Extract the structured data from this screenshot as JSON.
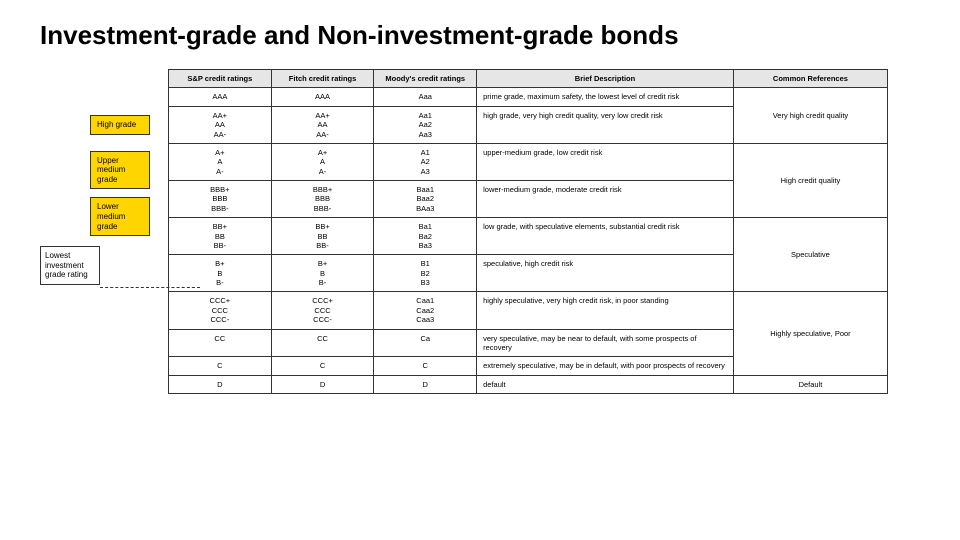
{
  "title": "Investment-grade and Non-investment-grade bonds",
  "colors": {
    "highlight": "#ffd500",
    "header_bg": "#e6e6e6",
    "border": "#333333",
    "text": "#000000",
    "bg": "#ffffff"
  },
  "headers": {
    "sp": "S&P credit ratings",
    "fitch": "Fitch credit ratings",
    "moodys": "Moody's credit ratings",
    "desc": "Brief Description",
    "ref": "Common References"
  },
  "gradeLabels": {
    "high": "High grade",
    "upperMed": "Upper medium grade",
    "lowerMed": "Lower medium grade"
  },
  "callout": "Lowest investment grade rating",
  "rows": [
    {
      "sp": "AAA",
      "fitch": "AAA",
      "moodys": "Aaa",
      "desc": "prime grade, maximum safety, the lowest level of credit risk"
    },
    {
      "sp": "AA+\nAA\nAA-",
      "fitch": "AA+\nAA\nAA-",
      "moodys": "Aa1\nAa2\nAa3",
      "desc": "high grade, very high credit quality, very low credit risk"
    },
    {
      "sp": "A+\nA\nA-",
      "fitch": "A+\nA\nA-",
      "moodys": "A1\nA2\nA3",
      "desc": "upper-medium grade, low credit risk"
    },
    {
      "sp": "BBB+\nBBB\nBBB-",
      "fitch": "BBB+\nBBB\nBBB-",
      "moodys": "Baa1\nBaa2\nBAa3",
      "desc": "lower-medium grade, moderate credit risk"
    },
    {
      "sp": "BB+\nBB\nBB-",
      "fitch": "BB+\nBB\nBB-",
      "moodys": "Ba1\nBa2\nBa3",
      "desc": "low grade, with speculative elements, substantial credit risk"
    },
    {
      "sp": "B+\nB\nB-",
      "fitch": "B+\nB\nB-",
      "moodys": "B1\nB2\nB3",
      "desc": "speculative, high credit risk"
    },
    {
      "sp": "CCC+\nCCC\nCCC-",
      "fitch": "CCC+\nCCC\nCCC-",
      "moodys": "Caa1\nCaa2\nCaa3",
      "desc": "highly speculative, very high credit risk, in poor standing"
    },
    {
      "sp": "CC",
      "fitch": "CC",
      "moodys": "Ca",
      "desc": "very speculative, may be near to default, with some prospects of recovery"
    },
    {
      "sp": "C",
      "fitch": "C",
      "moodys": "C",
      "desc": "extremely speculative, may be in default, with poor prospects of recovery"
    },
    {
      "sp": "D",
      "fitch": "D",
      "moodys": "D",
      "desc": "default"
    }
  ],
  "refs": {
    "veryHigh": "Very high credit quality",
    "high": "High credit quality",
    "spec": "Speculative",
    "highlySpec": "Highly speculative, Poor",
    "default": "Default"
  }
}
